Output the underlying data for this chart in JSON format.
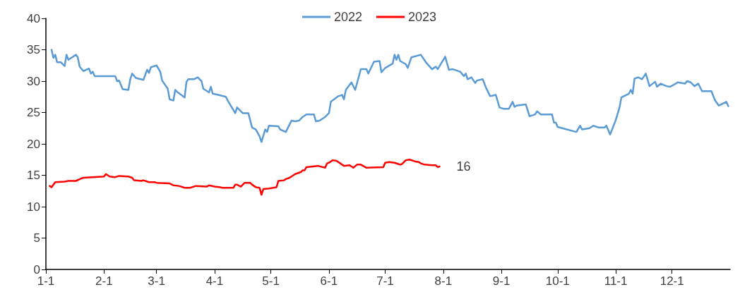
{
  "chart_data": {
    "type": "line",
    "legend": "top",
    "grid": false,
    "marker": "none",
    "line_style": "solid",
    "xlim": [
      "--01-01",
      "--12-31"
    ],
    "xticks": [
      {
        "value": "--01-01",
        "label": "1-1"
      },
      {
        "value": "--02-01",
        "label": "2-1"
      },
      {
        "value": "--03-01",
        "label": "3-1"
      },
      {
        "value": "--04-01",
        "label": "4-1"
      },
      {
        "value": "--05-01",
        "label": "5-1"
      },
      {
        "value": "--06-01",
        "label": "6-1"
      },
      {
        "value": "--07-01",
        "label": "7-1"
      },
      {
        "value": "--08-01",
        "label": "8-1"
      },
      {
        "value": "--09-01",
        "label": "9-1"
      },
      {
        "value": "--10-01",
        "label": "10-1"
      },
      {
        "value": "--11-01",
        "label": "11-1"
      },
      {
        "value": "--12-01",
        "label": "12-1"
      }
    ],
    "ylim": [
      0,
      40
    ],
    "yticks": [
      0,
      5,
      10,
      15,
      20,
      25,
      30,
      35,
      40
    ],
    "series": [
      {
        "name": "2022",
        "color": "#5b9bd5",
        "x": [
          "--01-04",
          "--01-05",
          "--01-06",
          "--01-07",
          "--01-09",
          "--01-11",
          "--01-12",
          "--01-13",
          "--01-17",
          "--01-18",
          "--01-19",
          "--01-21",
          "--01-24",
          "--01-25",
          "--01-26",
          "--01-27",
          "--01-30",
          "--02-07",
          "--02-08",
          "--02-09",
          "--02-11",
          "--02-14",
          "--02-15",
          "--02-16",
          "--02-18",
          "--02-22",
          "--02-24",
          "--02-25",
          "--02-26",
          "--03-01",
          "--03-03",
          "--03-04",
          "--03-07",
          "--03-08",
          "--03-10",
          "--03-11",
          "--03-12",
          "--03-16",
          "--03-17",
          "--03-18",
          "--03-21",
          "--03-23",
          "--03-25",
          "--03-26",
          "--03-29",
          "--03-30",
          "--03-31",
          "--04-03",
          "--04-07",
          "--04-08",
          "--04-12",
          "--04-13",
          "--04-16",
          "--04-19",
          "--04-21",
          "--04-23",
          "--04-25",
          "--04-26",
          "--04-28",
          "--04-29",
          "--04-30",
          "--05-05",
          "--05-06",
          "--05-09",
          "--05-12",
          "--05-14",
          "--05-16",
          "--05-18",
          "--05-20",
          "--05-24",
          "--05-25",
          "--05-27",
          "--05-30",
          "--06-01",
          "--06-02",
          "--06-06",
          "--06-08",
          "--06-09",
          "--06-10",
          "--06-13",
          "--06-15",
          "--06-18",
          "--06-21",
          "--06-22",
          "--06-25",
          "--06-28",
          "--06-29",
          "--07-01",
          "--07-05",
          "--07-06",
          "--07-07",
          "--07-08",
          "--07-09",
          "--07-12",
          "--07-13",
          "--07-15",
          "--07-20",
          "--07-23",
          "--07-26",
          "--07-28",
          "--07-29",
          "--08-02",
          "--08-04",
          "--08-06",
          "--08-10",
          "--08-12",
          "--08-13",
          "--08-14",
          "--08-16",
          "--08-18",
          "--08-19",
          "--08-22",
          "--08-24",
          "--08-26",
          "--08-29",
          "--08-31",
          "--09-02",
          "--09-05",
          "--09-07",
          "--09-08",
          "--09-09",
          "--09-14",
          "--09-16",
          "--09-19",
          "--09-20",
          "--09-22",
          "--09-28",
          "--09-29",
          "--09-30",
          "--10-01",
          "--10-11",
          "--10-13",
          "--10-14",
          "--10-18",
          "--10-20",
          "--10-23",
          "--10-26",
          "--10-27",
          "--10-29",
          "--11-01",
          "--11-03",
          "--11-04",
          "--11-08",
          "--11-09",
          "--11-10",
          "--11-11",
          "--11-13",
          "--11-15",
          "--11-17",
          "--11-19",
          "--11-22",
          "--11-23",
          "--11-25",
          "--11-28",
          "--11-30",
          "--12-03",
          "--12-04",
          "--12-08",
          "--12-09",
          "--12-11",
          "--12-13",
          "--12-15",
          "--12-17",
          "--12-22",
          "--12-24",
          "--12-26",
          "--12-30",
          "--12-31"
        ],
        "values": [
          35,
          33.7,
          34.2,
          33,
          33,
          32.4,
          34.2,
          33.4,
          34.2,
          33.8,
          32.3,
          31.6,
          32,
          31.2,
          31.5,
          30.8,
          30.8,
          30.8,
          30,
          30.1,
          28.7,
          28.6,
          30.3,
          31.2,
          30.5,
          30.2,
          31.8,
          31.3,
          32.2,
          32.5,
          31.5,
          30.1,
          28.8,
          27.1,
          26.9,
          28.6,
          28.3,
          27.4,
          29.9,
          30.3,
          30.3,
          30.6,
          30,
          28.8,
          28.2,
          29.1,
          28,
          27.8,
          27.5,
          26.9,
          24.9,
          25.8,
          24.9,
          24.9,
          22.6,
          22.3,
          21.2,
          20.3,
          22.3,
          21.9,
          22.9,
          22.8,
          22.3,
          21.9,
          23.7,
          23.6,
          23.7,
          24.3,
          24.7,
          24.7,
          23.6,
          23.7,
          24.3,
          24.9,
          26.7,
          27.6,
          27.8,
          27.1,
          28.6,
          29.8,
          28.6,
          31.9,
          31.9,
          31.2,
          33.1,
          33.2,
          31.4,
          32.1,
          32.8,
          34.2,
          33.4,
          34.2,
          33.2,
          32.7,
          32.1,
          33.8,
          34.2,
          32.9,
          31.9,
          32.3,
          31.9,
          33.9,
          31.8,
          31.9,
          31.5,
          30.8,
          31.2,
          30.3,
          30.6,
          29.7,
          30.1,
          30.3,
          28.8,
          27.6,
          27.8,
          25.8,
          25.6,
          25.6,
          26.7,
          25.9,
          26.1,
          26.3,
          24.4,
          24.7,
          25.2,
          24.7,
          24.7,
          23.4,
          23.4,
          22.7,
          21.9,
          22.9,
          22.3,
          22.5,
          22.9,
          22.6,
          22.6,
          22.9,
          21.5,
          23.8,
          25.8,
          27.4,
          28,
          28.6,
          28,
          30.4,
          30.6,
          30.3,
          31.2,
          29.2,
          29.9,
          29.1,
          29.6,
          29.2,
          29.1,
          29.6,
          29.8,
          29.6,
          30,
          29.8,
          29.2,
          29.6,
          28.4,
          28.4,
          26.9,
          26.1,
          26.7,
          26
        ]
      },
      {
        "name": "2023",
        "color": "#ff0000",
        "x": [
          "--01-03",
          "--01-04",
          "--01-06",
          "--01-11",
          "--01-13",
          "--01-17",
          "--01-20",
          "--01-21",
          "--02-01",
          "--02-02",
          "--02-04",
          "--02-07",
          "--02-09",
          "--02-14",
          "--02-16",
          "--02-17",
          "--02-21",
          "--02-22",
          "--02-25",
          "--02-28",
          "--03-01",
          "--03-08",
          "--03-10",
          "--03-13",
          "--03-16",
          "--03-19",
          "--03-22",
          "--03-28",
          "--03-29",
          "--04-01",
          "--04-04",
          "--04-05",
          "--04-11",
          "--04-12",
          "--04-13",
          "--04-15",
          "--04-17",
          "--04-20",
          "--04-21",
          "--04-23",
          "--04-25",
          "--04-26",
          "--04-27",
          "--04-30",
          "--05-04",
          "--05-05",
          "--05-08",
          "--05-09",
          "--05-11",
          "--05-14",
          "--05-17",
          "--05-18",
          "--05-19",
          "--05-20",
          "--05-26",
          "--05-30",
          "--05-31",
          "--06-01",
          "--06-03",
          "--06-05",
          "--06-09",
          "--06-12",
          "--06-14",
          "--06-16",
          "--06-18",
          "--06-21",
          "--06-30",
          "--07-01",
          "--07-03",
          "--07-06",
          "--07-08",
          "--07-09",
          "--07-10",
          "--07-12",
          "--07-14",
          "--07-17",
          "--07-19",
          "--07-20",
          "--07-22",
          "--07-26",
          "--07-28",
          "--07-29",
          "--07-30"
        ],
        "values": [
          13.3,
          13.1,
          13.9,
          14,
          14.1,
          14.1,
          14.5,
          14.6,
          14.8,
          15.2,
          14.8,
          14.7,
          14.9,
          14.8,
          14.6,
          14.2,
          14.1,
          14.2,
          13.9,
          13.9,
          13.8,
          13.7,
          13.4,
          13.3,
          13,
          13,
          13.3,
          13.2,
          13.4,
          13.2,
          13.1,
          13,
          13,
          13.5,
          13.5,
          13.2,
          13.8,
          13.8,
          13.5,
          13.1,
          13,
          11.9,
          12.8,
          12.9,
          13.1,
          14.1,
          14.2,
          14.4,
          14.6,
          15.2,
          15.5,
          15.8,
          15.8,
          16.3,
          16.5,
          16.2,
          16.9,
          17,
          17.4,
          17.3,
          16.5,
          16.6,
          16.2,
          16.7,
          16.7,
          16.2,
          16.3,
          17,
          17.1,
          17,
          16.8,
          16.7,
          16.8,
          17.4,
          17.5,
          17.2,
          17.1,
          16.9,
          16.7,
          16.6,
          16.6,
          16.3,
          16.4
        ],
        "value_labels": [
          null,
          null,
          null,
          null,
          null,
          null,
          null,
          null,
          null,
          null,
          null,
          null,
          null,
          null,
          null,
          null,
          null,
          null,
          null,
          null,
          null,
          null,
          null,
          null,
          null,
          null,
          null,
          null,
          null,
          null,
          null,
          null,
          null,
          null,
          null,
          null,
          null,
          null,
          null,
          null,
          null,
          null,
          null,
          null,
          null,
          null,
          null,
          null,
          null,
          null,
          null,
          null,
          null,
          null,
          null,
          null,
          null,
          null,
          null,
          null,
          null,
          null,
          null,
          null,
          null,
          null,
          null,
          null,
          null,
          null,
          null,
          null,
          null,
          null,
          null,
          null,
          null,
          null,
          null,
          null,
          null,
          null,
          "16"
        ]
      }
    ]
  }
}
